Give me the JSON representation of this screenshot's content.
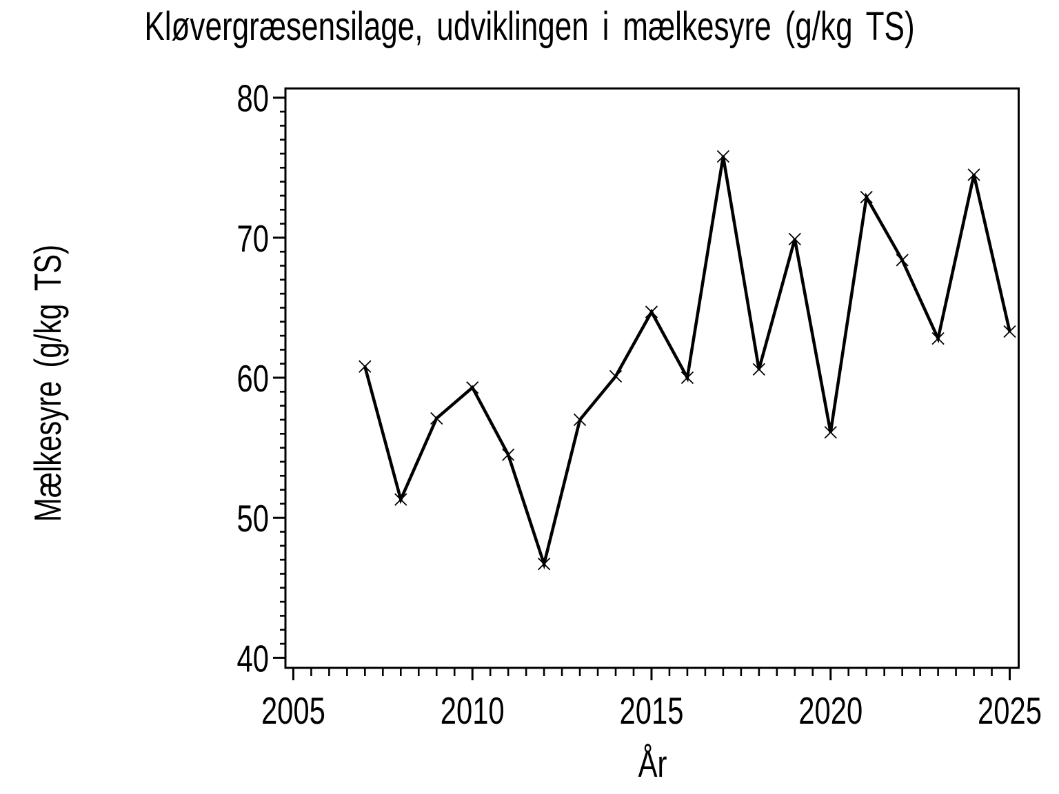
{
  "page": {
    "background": "#ffffff",
    "foreground": "#000000"
  },
  "chart_data": {
    "type": "line",
    "title": "Kløvergræsensilage, udviklingen i mælkesyre (g/kg TS)",
    "xlabel": "År",
    "ylabel": "Mælkesyre (g/kg TS)",
    "series": [
      {
        "name": "mælkesyre",
        "marker": "x",
        "color": "#000000",
        "x": [
          2007,
          2008,
          2009,
          2010,
          2011,
          2012,
          2013,
          2014,
          2015,
          2016,
          2017,
          2018,
          2019,
          2020,
          2021,
          2022,
          2023,
          2024,
          2025
        ],
        "values": [
          60.8,
          51.3,
          57.1,
          59.3,
          54.5,
          46.7,
          57.0,
          60.1,
          64.7,
          60.0,
          75.8,
          60.6,
          69.9,
          56.1,
          72.9,
          68.4,
          62.8,
          74.5,
          63.3
        ]
      }
    ],
    "xlim": [
      2004.78,
      2025.25
    ],
    "ylim": [
      39.28,
      80.66
    ],
    "x_major_ticks": [
      2005,
      2010,
      2015,
      2020,
      2025
    ],
    "x_minor_step": 0.5,
    "y_major_ticks": [
      40,
      50,
      60,
      70,
      80
    ],
    "y_minor_step": 1,
    "grid": "off",
    "legend": "none",
    "frame": "box"
  }
}
